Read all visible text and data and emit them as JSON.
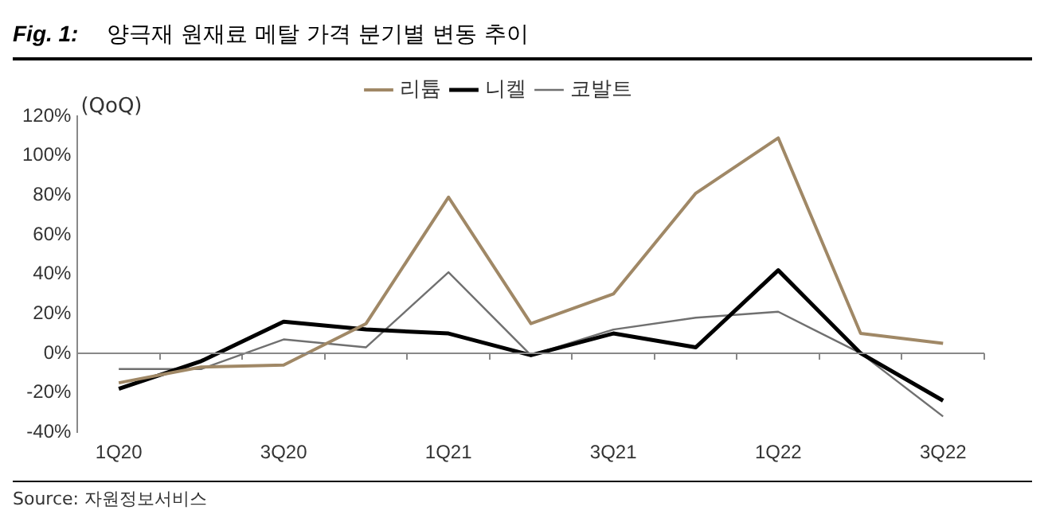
{
  "chart_data": {
    "type": "line",
    "title": "Fig. 1:",
    "subtitle": "양극재 원재료 메탈 가격 분기별 변동 추이",
    "categories": [
      "1Q20",
      null,
      "3Q20",
      null,
      "1Q21",
      null,
      "3Q21",
      null,
      "1Q22",
      null,
      "3Q22"
    ],
    "series": [
      {
        "name": "리튬",
        "color": "#a08866",
        "values": [
          -15,
          -7,
          -6,
          15,
          79,
          15,
          30,
          81,
          109,
          10,
          5
        ]
      },
      {
        "name": "니켈",
        "color": "#000000",
        "values": [
          -18,
          -4,
          16,
          12,
          10,
          -1,
          10,
          3,
          42,
          0,
          -24
        ]
      },
      {
        "name": "코발트",
        "color": "#707070",
        "values": [
          -8,
          -8,
          7,
          3,
          41,
          -1,
          12,
          18,
          21,
          0,
          -32
        ]
      }
    ],
    "ylim": [
      -40,
      120
    ],
    "yticks": [
      {
        "value": -40,
        "label": "-40%"
      },
      {
        "value": -20,
        "label": "-20%"
      },
      {
        "value": 0,
        "label": "0%"
      },
      {
        "value": 20,
        "label": "20%"
      },
      {
        "value": 40,
        "label": "40%"
      },
      {
        "value": 60,
        "label": "60%"
      },
      {
        "value": 80,
        "label": "80%"
      },
      {
        "value": 100,
        "label": "100%"
      },
      {
        "value": 120,
        "label": "120%"
      }
    ],
    "ylabel": "(QoQ)",
    "annotations": [
      "Source: 자원정보서비스"
    ],
    "ref_lines": [
      {
        "axis": "y",
        "value": 0,
        "color": "#888888"
      }
    ],
    "grid": false,
    "legend": "top right",
    "marker": "none",
    "line_style": "solid"
  }
}
